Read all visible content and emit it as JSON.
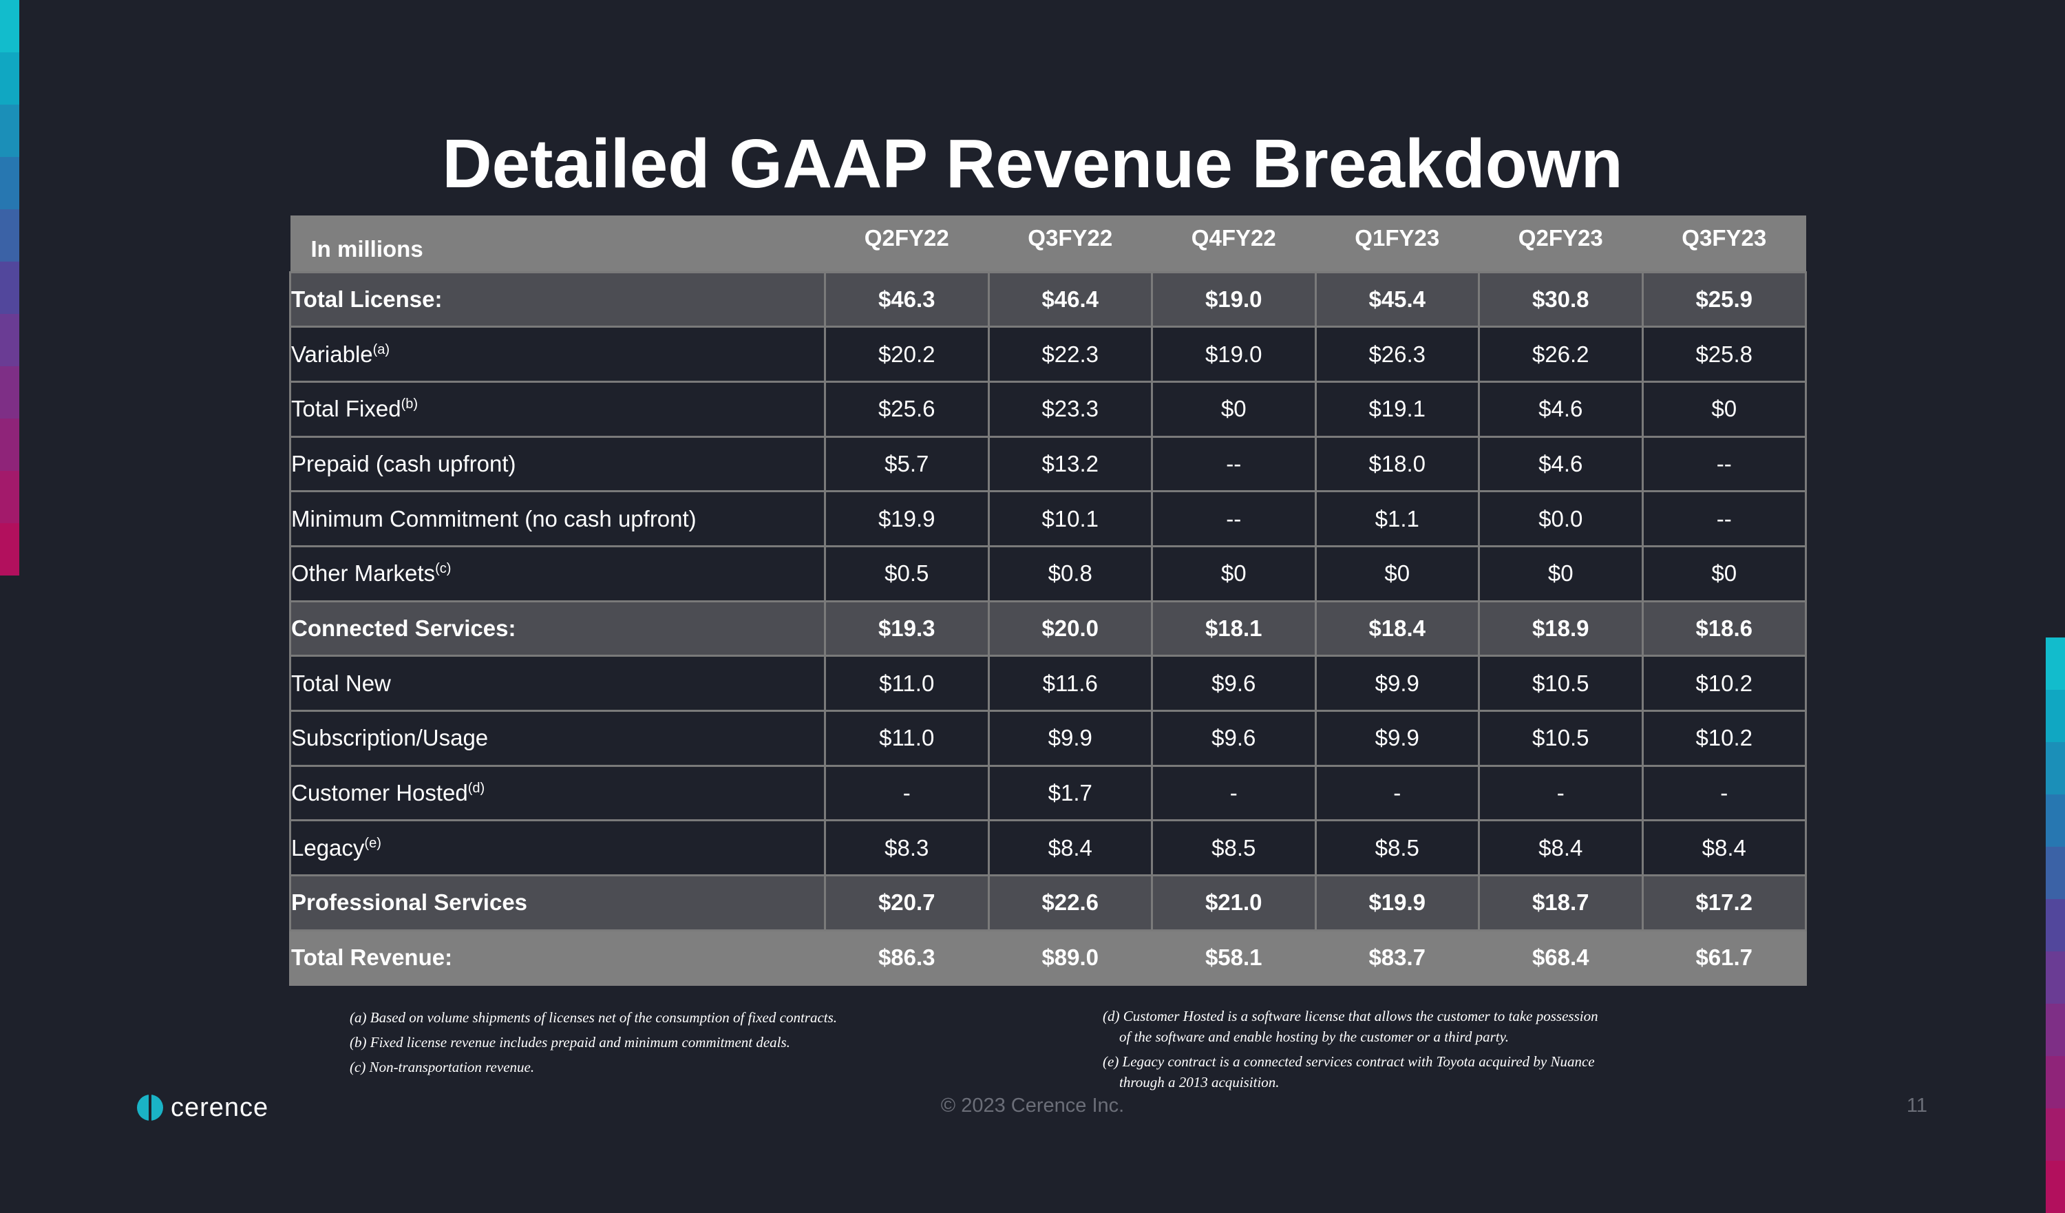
{
  "title": "Detailed GAAP Revenue Breakdown",
  "colors": {
    "background": "#1e212b",
    "header_bg": "#7f7f7f",
    "section_bg": "#4c4d53",
    "logo_teal": "#1ab3c6",
    "bar_left": [
      "#12bccc",
      "#10a7c2",
      "#1b8fb8",
      "#2777b1",
      "#3b62a6",
      "#52479c",
      "#6a3c94",
      "#7e2f86",
      "#8f2479",
      "#a31a6b",
      "#b2105d"
    ]
  },
  "table": {
    "header": {
      "label": "In millions",
      "columns": [
        "Q2FY22",
        "Q3FY22",
        "Q4FY22",
        "Q1FY23",
        "Q2FY23",
        "Q3FY23"
      ]
    },
    "rows": [
      {
        "label": "Total License:",
        "sup": "",
        "values": [
          "$46.3",
          "$46.4",
          "$19.0",
          "$45.4",
          "$30.8",
          "$25.9"
        ]
      },
      {
        "label": "Variable",
        "sup": "(a)",
        "values": [
          "$20.2",
          "$22.3",
          "$19.0",
          "$26.3",
          "$26.2",
          "$25.8"
        ]
      },
      {
        "label": "Total Fixed",
        "sup": "(b)",
        "values": [
          "$25.6",
          "$23.3",
          "$0",
          "$19.1",
          "$4.6",
          "$0"
        ]
      },
      {
        "label": "Prepaid (cash upfront)",
        "sup": "",
        "values": [
          "$5.7",
          "$13.2",
          "--",
          "$18.0",
          "$4.6",
          "--"
        ]
      },
      {
        "label": "Minimum Commitment (no cash upfront)",
        "sup": "",
        "values": [
          "$19.9",
          "$10.1",
          "--",
          "$1.1",
          "$0.0",
          "--"
        ]
      },
      {
        "label": "Other Markets",
        "sup": "(c)",
        "values": [
          "$0.5",
          "$0.8",
          "$0",
          "$0",
          "$0",
          "$0"
        ]
      },
      {
        "label": "Connected Services:",
        "sup": "",
        "values": [
          "$19.3",
          "$20.0",
          "$18.1",
          "$18.4",
          "$18.9",
          "$18.6"
        ]
      },
      {
        "label": "Total New",
        "sup": "",
        "values": [
          "$11.0",
          "$11.6",
          "$9.6",
          "$9.9",
          "$10.5",
          "$10.2"
        ]
      },
      {
        "label": "Subscription/Usage",
        "sup": "",
        "values": [
          "$11.0",
          "$9.9",
          "$9.6",
          "$9.9",
          "$10.5",
          "$10.2"
        ]
      },
      {
        "label": "Customer Hosted",
        "sup": "(d)",
        "values": [
          "-",
          "$1.7",
          "-",
          "-",
          "-",
          "-"
        ]
      },
      {
        "label": "Legacy",
        "sup": "(e)",
        "values": [
          "$8.3",
          "$8.4",
          "$8.5",
          "$8.5",
          "$8.4",
          "$8.4"
        ]
      },
      {
        "label": "Professional Services",
        "sup": "",
        "values": [
          "$20.7",
          "$22.6",
          "$21.0",
          "$19.9",
          "$18.7",
          "$17.2"
        ]
      },
      {
        "label": "Total Revenue:",
        "sup": "",
        "values": [
          "$86.3",
          "$89.0",
          "$58.1",
          "$83.7",
          "$68.4",
          "$61.7"
        ]
      }
    ]
  },
  "footnotes_left": [
    "(a) Based on volume shipments of licenses net of  the consumption of fixed contracts.",
    "(b) Fixed license revenue includes prepaid and minimum commitment deals.",
    "(c) Non-transportation revenue."
  ],
  "footnotes_right": {
    "d_line1": "(d) Customer Hosted is a software license that allows the customer to take possession",
    "d_line2": "of the software and enable hosting by the customer or a third party.",
    "e_line1": "(e) Legacy contract is a connected services contract with Toyota acquired by Nuance",
    "e_line2": "through a 2013 acquisition."
  },
  "footer": {
    "logo_text": "cerence",
    "copyright": "© 2023 Cerence Inc.",
    "page_number": "11"
  }
}
